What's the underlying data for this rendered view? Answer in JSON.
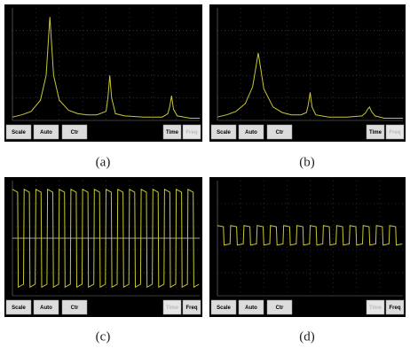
{
  "chart_data": [
    {
      "type": "line",
      "color": "#c8c832",
      "xlim": [
        0,
        1
      ],
      "ylim": [
        0,
        100
      ],
      "grid": true,
      "x": [
        0,
        0.05,
        0.1,
        0.15,
        0.18,
        0.2,
        0.22,
        0.25,
        0.3,
        0.35,
        0.4,
        0.45,
        0.5,
        0.51,
        0.52,
        0.53,
        0.55,
        0.6,
        0.7,
        0.8,
        0.83,
        0.84,
        0.85,
        0.86,
        0.88,
        0.95,
        1
      ],
      "values": [
        3,
        5,
        8,
        18,
        40,
        92,
        40,
        18,
        9,
        6,
        5,
        5,
        8,
        20,
        40,
        20,
        6,
        4,
        3,
        3,
        6,
        12,
        22,
        10,
        4,
        2,
        2
      ]
    },
    {
      "type": "line",
      "color": "#c8c832",
      "xlim": [
        0,
        1
      ],
      "ylim": [
        0,
        100
      ],
      "grid": true,
      "x": [
        0,
        0.05,
        0.1,
        0.15,
        0.19,
        0.22,
        0.25,
        0.3,
        0.35,
        0.4,
        0.45,
        0.48,
        0.49,
        0.5,
        0.51,
        0.53,
        0.6,
        0.7,
        0.78,
        0.8,
        0.81,
        0.82,
        0.83,
        0.85,
        0.9,
        1
      ],
      "values": [
        3,
        5,
        8,
        15,
        30,
        60,
        28,
        12,
        7,
        5,
        5,
        7,
        14,
        25,
        12,
        5,
        3,
        3,
        4,
        7,
        10,
        12,
        8,
        4,
        2,
        2
      ]
    },
    {
      "type": "line",
      "color": "#c8c832",
      "xlim": [
        0,
        16
      ],
      "ylim": [
        -1,
        1
      ],
      "grid": true,
      "x": [
        0,
        0.45,
        0.5,
        0.95,
        1,
        1.45,
        1.5,
        1.95,
        2,
        2.45,
        2.5,
        2.95,
        3,
        3.45,
        3.5,
        3.95,
        4,
        4.45,
        4.5,
        4.95,
        5,
        5.45,
        5.5,
        5.95,
        6,
        6.45,
        6.5,
        6.95,
        7,
        7.45,
        7.5,
        7.95,
        8,
        8.45,
        8.5,
        8.95,
        9,
        9.45,
        9.5,
        9.95,
        10,
        10.45,
        10.5,
        10.95,
        11,
        11.45,
        11.5,
        11.95,
        12,
        12.45,
        12.5,
        12.95,
        13,
        13.45,
        13.5,
        13.95,
        14,
        14.45,
        14.5,
        14.95,
        15,
        15.45,
        15.5,
        15.95
      ],
      "values": [
        0.85,
        0.8,
        -0.85,
        -0.8,
        0.85,
        0.8,
        -0.85,
        -0.8,
        0.85,
        0.8,
        -0.85,
        -0.8,
        0.85,
        0.8,
        -0.85,
        -0.8,
        0.85,
        0.8,
        -0.85,
        -0.8,
        0.85,
        0.8,
        -0.85,
        -0.8,
        0.85,
        0.8,
        -0.85,
        -0.8,
        0.85,
        0.8,
        -0.85,
        -0.8,
        0.85,
        0.8,
        -0.85,
        -0.8,
        0.85,
        0.8,
        -0.85,
        -0.8,
        0.85,
        0.8,
        -0.85,
        -0.8,
        0.85,
        0.8,
        -0.85,
        -0.8,
        0.85,
        0.8,
        -0.85,
        -0.8,
        0.85,
        0.8,
        -0.85,
        -0.8,
        0.85,
        0.8,
        -0.85,
        -0.8,
        0.85,
        0.8,
        -0.85,
        -0.8
      ]
    },
    {
      "type": "line",
      "color": "#c8c832",
      "xlim": [
        0,
        14
      ],
      "ylim": [
        -1,
        1
      ],
      "grid": true,
      "x": [
        0,
        0.45,
        0.5,
        0.95,
        1,
        1.45,
        1.5,
        1.95,
        2,
        2.45,
        2.5,
        2.95,
        3,
        3.45,
        3.5,
        3.95,
        4,
        4.45,
        4.5,
        4.95,
        5,
        5.45,
        5.5,
        5.95,
        6,
        6.45,
        6.5,
        6.95,
        7,
        7.45,
        7.5,
        7.95,
        8,
        8.45,
        8.5,
        8.95,
        9,
        9.45,
        9.5,
        9.95,
        10,
        10.45,
        10.5,
        10.95,
        11,
        11.45,
        11.5,
        11.95,
        12,
        12.45,
        12.5,
        12.95,
        13,
        13.45,
        13.5,
        13.95
      ],
      "values": [
        0.22,
        0.2,
        -0.12,
        -0.1,
        0.22,
        0.2,
        -0.12,
        -0.1,
        0.22,
        0.2,
        -0.12,
        -0.1,
        0.22,
        0.2,
        -0.12,
        -0.1,
        0.22,
        0.2,
        -0.12,
        -0.1,
        0.22,
        0.2,
        -0.12,
        -0.1,
        0.22,
        0.2,
        -0.12,
        -0.1,
        0.22,
        0.2,
        -0.12,
        -0.1,
        0.22,
        0.2,
        -0.12,
        -0.1,
        0.22,
        0.2,
        -0.12,
        -0.1,
        0.22,
        0.2,
        -0.12,
        -0.1,
        0.22,
        0.2,
        -0.12,
        -0.1,
        0.22,
        0.2,
        -0.12,
        -0.1,
        0.22,
        0.2,
        -0.12,
        -0.1
      ]
    }
  ],
  "panels": [
    {
      "caption": "(a)",
      "buttons": [
        {
          "label": "Scale",
          "enabled": true
        },
        {
          "label": "Auto",
          "enabled": true
        },
        {
          "label": "Ctr",
          "enabled": true
        },
        {
          "label": "Time",
          "enabled": true
        },
        {
          "label": "Freq",
          "enabled": false
        }
      ]
    },
    {
      "caption": "(b)",
      "buttons": [
        {
          "label": "Scale",
          "enabled": true
        },
        {
          "label": "Auto",
          "enabled": true
        },
        {
          "label": "Ctr",
          "enabled": true
        },
        {
          "label": "Time",
          "enabled": true
        },
        {
          "label": "Freq",
          "enabled": false
        }
      ]
    },
    {
      "caption": "(c)",
      "buttons": [
        {
          "label": "Scale",
          "enabled": true
        },
        {
          "label": "Auto",
          "enabled": true
        },
        {
          "label": "Ctr",
          "enabled": true
        },
        {
          "label": "Time",
          "enabled": false
        },
        {
          "label": "Freq",
          "enabled": true
        }
      ]
    },
    {
      "caption": "(d)",
      "buttons": [
        {
          "label": "Scale",
          "enabled": true
        },
        {
          "label": "Auto",
          "enabled": true
        },
        {
          "label": "Ctr",
          "enabled": true
        },
        {
          "label": "Time",
          "enabled": false
        },
        {
          "label": "Freq",
          "enabled": true
        }
      ]
    }
  ]
}
